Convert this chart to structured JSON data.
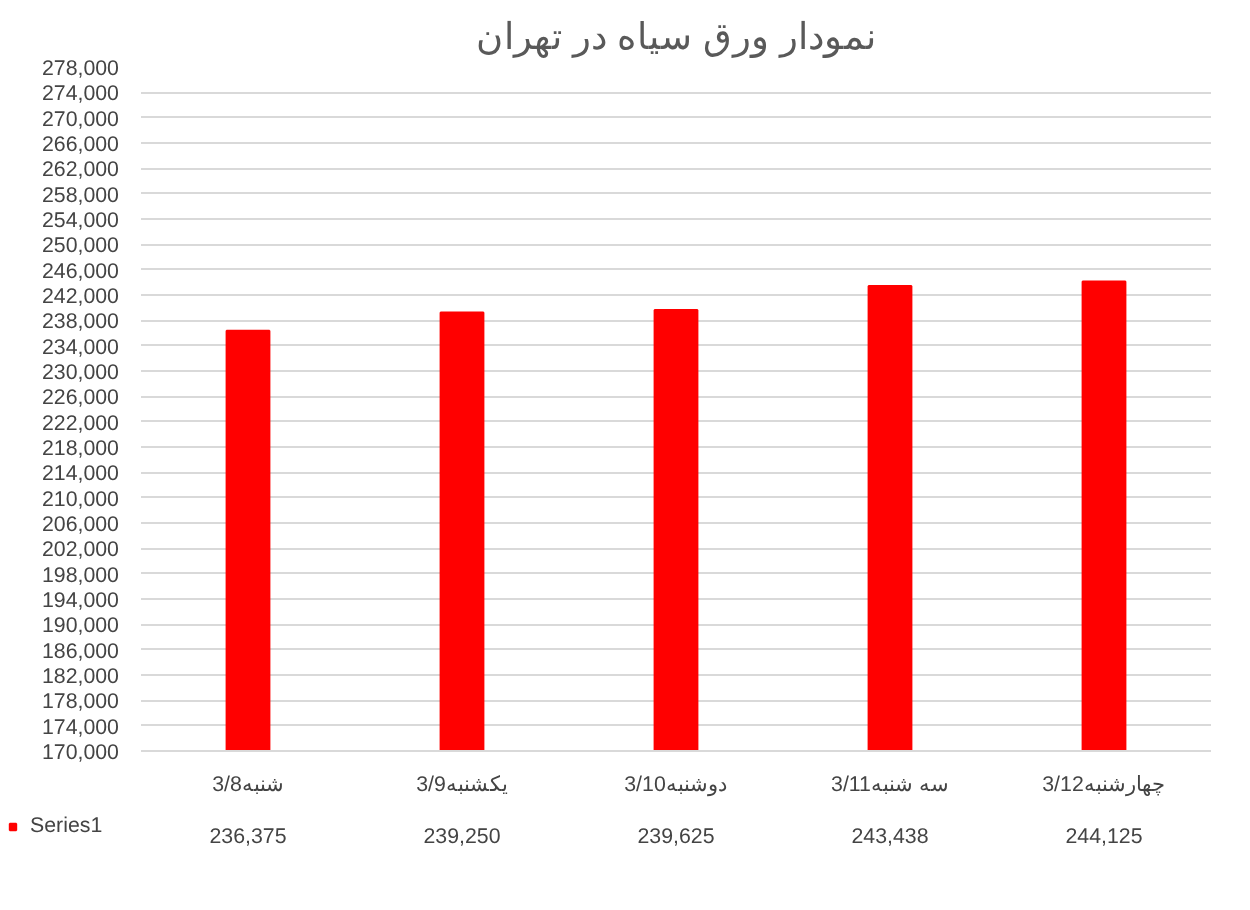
{
  "chart_data": {
    "type": "bar",
    "title": "نمودار ورق سیاه در تهران",
    "categories": [
      "3/8شنبه",
      "3/9یکشنبه",
      "3/10دوشنبه",
      "3/11سه شنبه",
      "3/12چهارشنبه"
    ],
    "series": [
      {
        "name": "Series1",
        "color": "#ff0000",
        "values": [
          236375,
          239250,
          239625,
          243438,
          244125
        ],
        "value_labels": [
          "236,375",
          "239,250",
          "239,625",
          "243,438",
          "244,125"
        ]
      }
    ],
    "ylim": [
      170000,
      278000
    ],
    "yticks": [
      {
        "value": 170000,
        "label": "170,000"
      },
      {
        "value": 174000,
        "label": "174,000"
      },
      {
        "value": 178000,
        "label": "178,000"
      },
      {
        "value": 182000,
        "label": "182,000"
      },
      {
        "value": 186000,
        "label": "186,000"
      },
      {
        "value": 190000,
        "label": "190,000"
      },
      {
        "value": 194000,
        "label": "194,000"
      },
      {
        "value": 198000,
        "label": "198,000"
      },
      {
        "value": 202000,
        "label": "202,000"
      },
      {
        "value": 206000,
        "label": "206,000"
      },
      {
        "value": 210000,
        "label": "210,000"
      },
      {
        "value": 214000,
        "label": "214,000"
      },
      {
        "value": 218000,
        "label": "218,000"
      },
      {
        "value": 222000,
        "label": "222,000"
      },
      {
        "value": 226000,
        "label": "226,000"
      },
      {
        "value": 230000,
        "label": "230,000"
      },
      {
        "value": 234000,
        "label": "234,000"
      },
      {
        "value": 238000,
        "label": "238,000"
      },
      {
        "value": 242000,
        "label": "242,000"
      },
      {
        "value": 246000,
        "label": "246,000"
      },
      {
        "value": 250000,
        "label": "250,000"
      },
      {
        "value": 254000,
        "label": "254,000"
      },
      {
        "value": 258000,
        "label": "258,000"
      },
      {
        "value": 262000,
        "label": "262,000"
      },
      {
        "value": 266000,
        "label": "266,000"
      },
      {
        "value": 270000,
        "label": "270,000"
      },
      {
        "value": 274000,
        "label": "274,000"
      },
      {
        "value": 278000,
        "label": "278,000"
      }
    ],
    "grid": "y",
    "legend": "bottom"
  }
}
